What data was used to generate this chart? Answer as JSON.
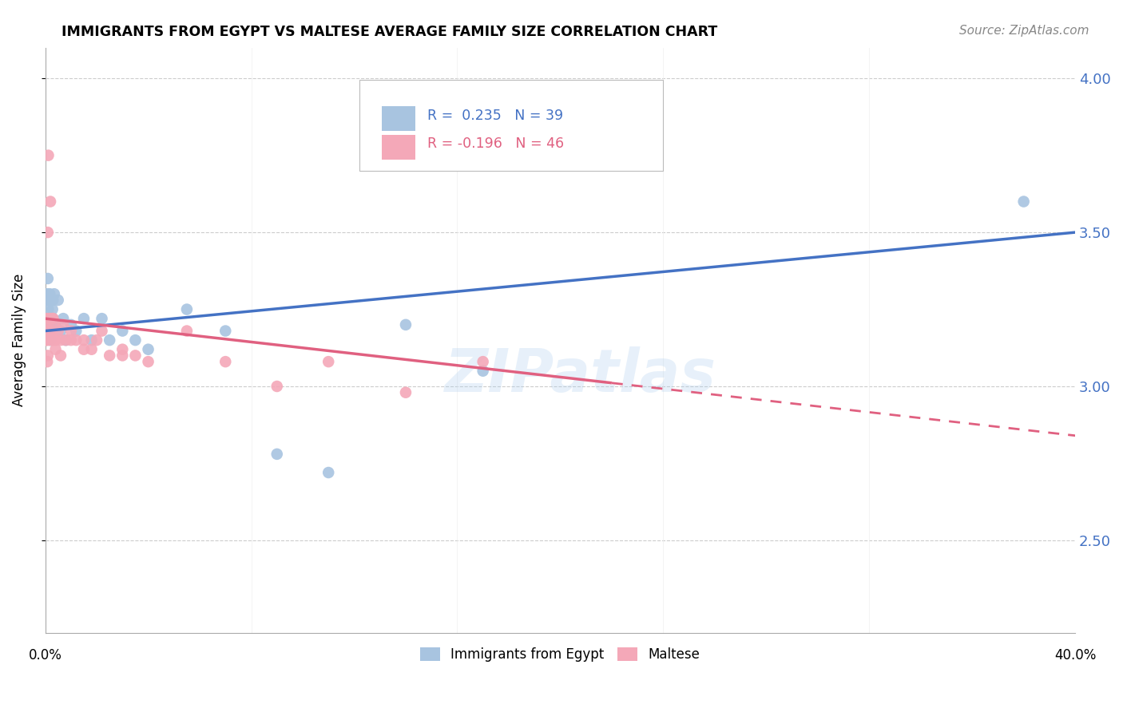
{
  "title": "IMMIGRANTS FROM EGYPT VS MALTESE AVERAGE FAMILY SIZE CORRELATION CHART",
  "source": "Source: ZipAtlas.com",
  "ylabel": "Average Family Size",
  "y_ticks_right": [
    2.5,
    3.0,
    3.5,
    4.0
  ],
  "watermark": "ZIPatlas",
  "legend1_label": "Immigrants from Egypt",
  "legend2_label": "Maltese",
  "r1": 0.235,
  "n1": 39,
  "r2": -0.196,
  "n2": 46,
  "blue_color": "#A8C4E0",
  "pink_color": "#F4A8B8",
  "blue_line_color": "#4472C4",
  "pink_line_color": "#E06080",
  "xlim": [
    0,
    40
  ],
  "ylim": [
    2.2,
    4.1
  ],
  "blue_line_x0": 0.0,
  "blue_line_y0": 3.18,
  "blue_line_x1": 40.0,
  "blue_line_y1": 3.5,
  "pink_line_x0": 0.0,
  "pink_line_y0": 3.22,
  "pink_line_x1": 40.0,
  "pink_line_y1": 2.84,
  "pink_solid_end": 22.0,
  "egypt_x": [
    0.02,
    0.04,
    0.06,
    0.08,
    0.1,
    0.12,
    0.15,
    0.18,
    0.2,
    0.22,
    0.25,
    0.28,
    0.3,
    0.35,
    0.4,
    0.5,
    0.6,
    0.7,
    0.8,
    1.0,
    1.2,
    1.5,
    1.8,
    2.2,
    2.5,
    3.0,
    3.5,
    4.0,
    5.5,
    7.0,
    9.0,
    11.0,
    14.0,
    17.0,
    38.0,
    0.05,
    0.1,
    0.2,
    0.3
  ],
  "egypt_y": [
    3.2,
    3.28,
    3.22,
    3.3,
    3.35,
    3.25,
    3.22,
    3.3,
    3.28,
    3.2,
    3.18,
    3.25,
    3.22,
    3.3,
    3.2,
    3.28,
    3.18,
    3.22,
    3.15,
    3.2,
    3.18,
    3.22,
    3.15,
    3.22,
    3.15,
    3.18,
    3.15,
    3.12,
    3.25,
    3.18,
    2.78,
    2.72,
    3.2,
    3.05,
    3.6,
    3.18,
    3.2,
    3.15,
    3.28
  ],
  "maltese_x": [
    0.02,
    0.04,
    0.06,
    0.08,
    0.1,
    0.12,
    0.15,
    0.18,
    0.2,
    0.22,
    0.25,
    0.28,
    0.3,
    0.35,
    0.4,
    0.5,
    0.6,
    0.7,
    0.8,
    1.0,
    1.2,
    1.5,
    1.8,
    2.2,
    2.5,
    3.0,
    3.5,
    4.0,
    5.5,
    7.0,
    9.0,
    11.0,
    14.0,
    17.0,
    0.05,
    0.1,
    0.2,
    0.3,
    0.08,
    0.15,
    0.4,
    0.6,
    1.0,
    1.5,
    2.0,
    3.0
  ],
  "maltese_y": [
    3.2,
    3.15,
    3.22,
    3.18,
    3.5,
    3.75,
    3.22,
    3.18,
    3.6,
    3.22,
    3.18,
    3.15,
    3.22,
    3.2,
    3.15,
    3.18,
    3.15,
    3.2,
    3.15,
    3.18,
    3.15,
    3.15,
    3.12,
    3.18,
    3.1,
    3.12,
    3.1,
    3.08,
    3.18,
    3.08,
    3.0,
    3.08,
    2.98,
    3.08,
    3.15,
    3.1,
    3.18,
    3.22,
    3.08,
    3.15,
    3.12,
    3.1,
    3.15,
    3.12,
    3.15,
    3.1
  ]
}
